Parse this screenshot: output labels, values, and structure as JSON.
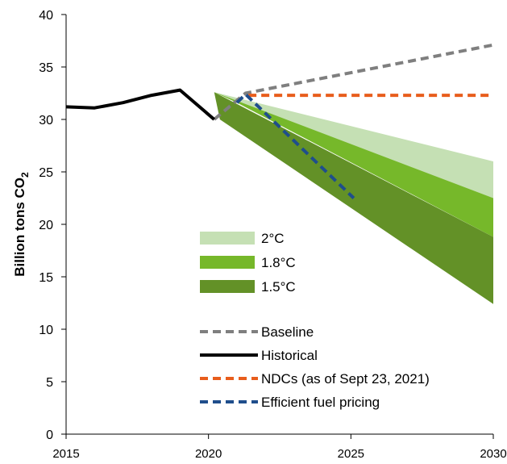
{
  "chart_data": {
    "type": "line",
    "ylabel": "Billion tons CO",
    "ylabel_subscript": "2",
    "xlim": [
      2015,
      2030
    ],
    "ylim": [
      0,
      40
    ],
    "x_ticks": [
      2015,
      2020,
      2025,
      2030
    ],
    "y_ticks": [
      0,
      5,
      10,
      15,
      20,
      25,
      30,
      35,
      40
    ],
    "grid": false,
    "legend_position": "center",
    "bands": [
      {
        "name": "2°C",
        "color": "#c5e0b4",
        "points": [
          [
            2020.2,
            32.6
          ],
          [
            2030,
            26.0
          ],
          [
            2030,
            22.5
          ],
          [
            2021.0,
            31.6
          ]
        ]
      },
      {
        "name": "1.8°C",
        "color": "#76b82a",
        "points": [
          [
            2020.2,
            32.6
          ],
          [
            2030,
            22.5
          ],
          [
            2030,
            18.8
          ],
          [
            2021.0,
            31.6
          ]
        ]
      },
      {
        "name": "1.5°C",
        "color": "#639127",
        "points": [
          [
            2020.2,
            32.6
          ],
          [
            2030,
            18.8
          ],
          [
            2030,
            12.4
          ],
          [
            2020.4,
            30.0
          ]
        ]
      }
    ],
    "series": [
      {
        "name": "Baseline",
        "color": "#7f7f7f",
        "dash": true,
        "x": [
          2020.2,
          2021.3,
          2030
        ],
        "y": [
          30.0,
          32.5,
          37.1
        ]
      },
      {
        "name": "Historical",
        "color": "#000000",
        "dash": false,
        "x": [
          2015,
          2016,
          2017,
          2018,
          2019,
          2020.2
        ],
        "y": [
          31.2,
          31.1,
          31.6,
          32.3,
          32.8,
          30.0
        ]
      },
      {
        "name": "NDCs (as of Sept 23, 2021)",
        "color": "#e85d1c",
        "dash": true,
        "x": [
          2021.4,
          2030
        ],
        "y": [
          32.3,
          32.3
        ]
      },
      {
        "name": "Efficient fuel pricing",
        "color": "#1f4e8c",
        "dash": true,
        "x": [
          2021.0,
          2021.3,
          2025.1
        ],
        "y": [
          31.6,
          32.4,
          22.5
        ]
      }
    ]
  }
}
